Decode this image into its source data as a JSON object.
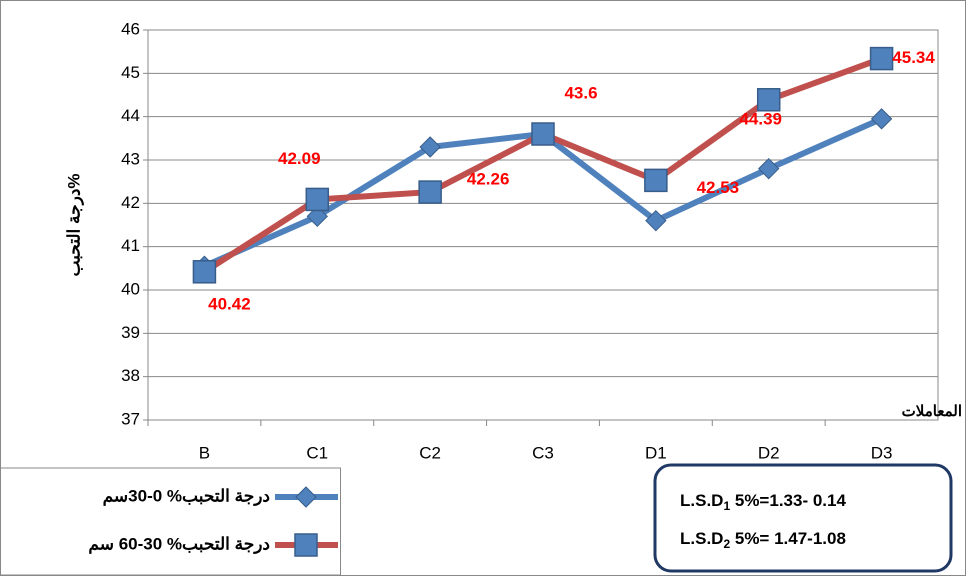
{
  "chart_data": {
    "type": "line",
    "y_label": "درجة التحبب%",
    "x_label": "المعاملات",
    "categories": [
      "B",
      "C1",
      "C2",
      "C3",
      "D1",
      "D2",
      "D3"
    ],
    "series": [
      {
        "name": "درجة التحبب% 0-30سم",
        "color": "#4f81bd",
        "marker": "diamond",
        "values": [
          40.55,
          41.7,
          43.3,
          43.6,
          41.6,
          42.8,
          43.95
        ]
      },
      {
        "name": "درجة التحبب% 30-60 سم",
        "color": "#c0504d",
        "marker": "square",
        "values": [
          40.42,
          42.09,
          42.26,
          43.6,
          42.53,
          44.39,
          45.34
        ],
        "data_labels": true
      }
    ],
    "ylim": [
      37,
      46
    ],
    "yticks": [
      37,
      38,
      39,
      40,
      41,
      42,
      43,
      44,
      45,
      46
    ],
    "grid": true,
    "annotations": [
      {
        "prefix": "L.S.D",
        "sub": "1",
        "text": " 5%=1.33- 0.14"
      },
      {
        "prefix": "L.S.D",
        "sub": "2",
        "text": " 5%= 1.47-1.08"
      }
    ]
  }
}
